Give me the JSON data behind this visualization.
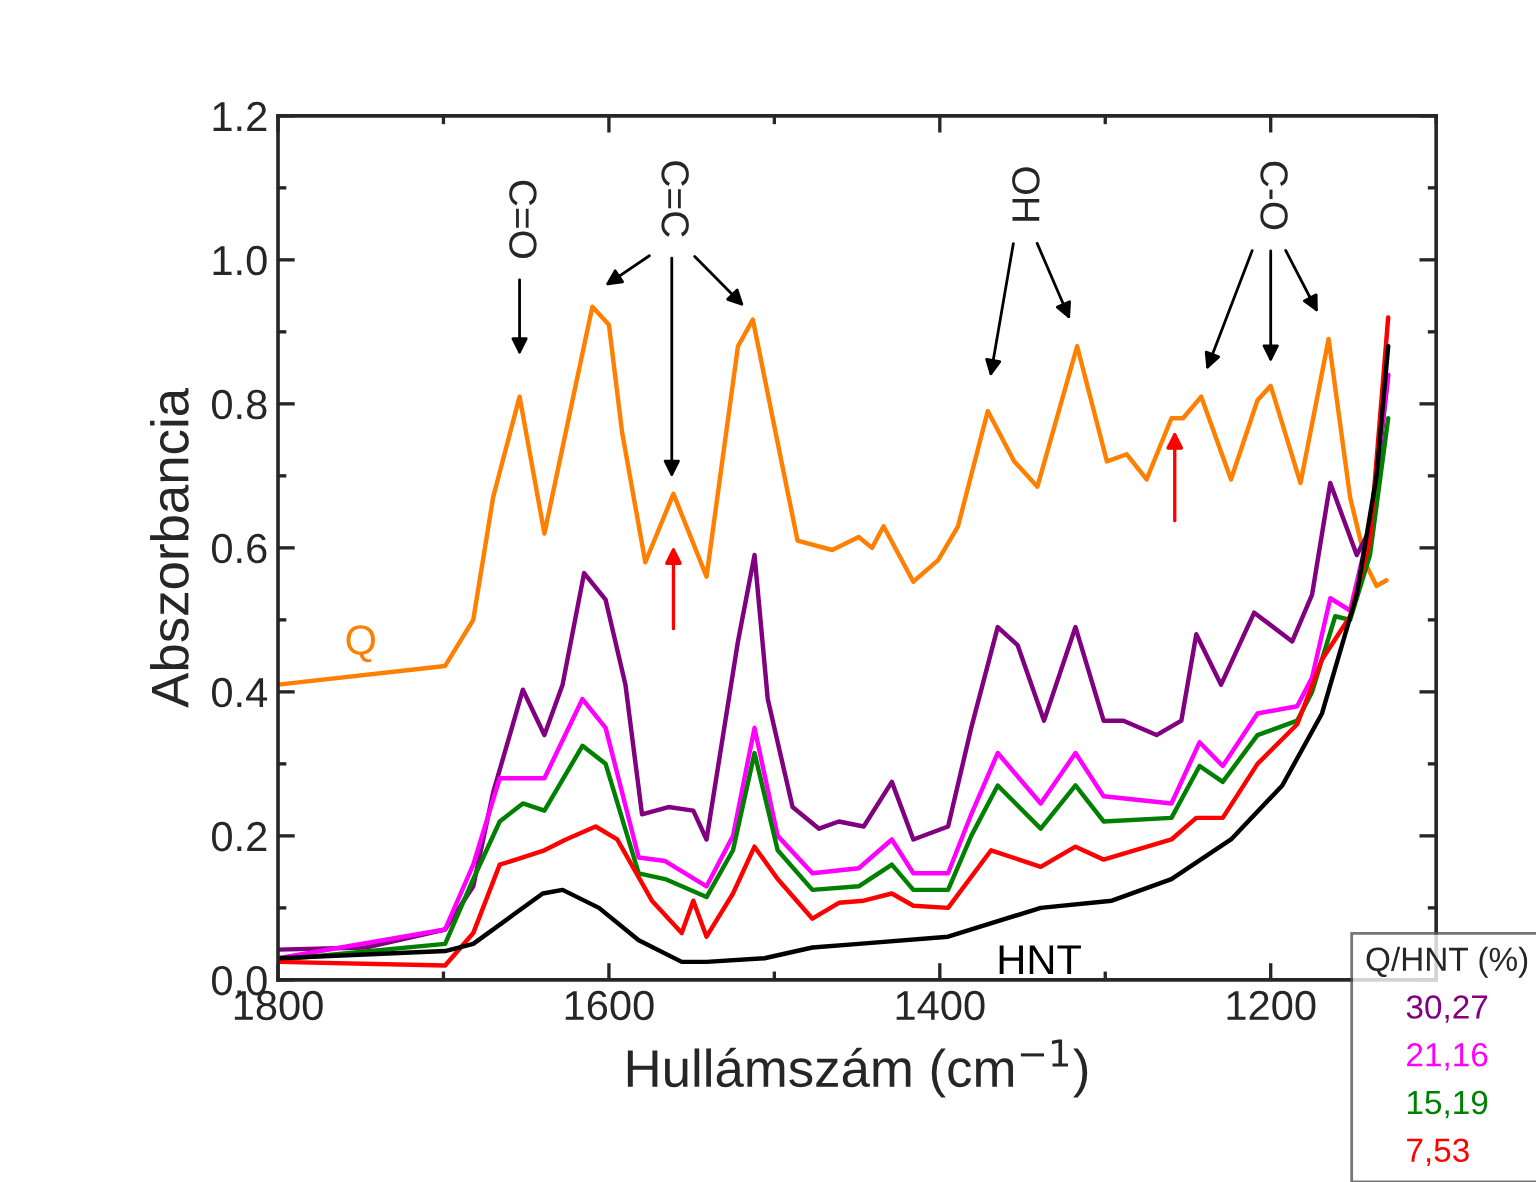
{
  "chart_data": {
    "type": "line",
    "xlabel": "Hullámszám (cm$^{−1}$)",
    "ylabel": "Abszorbancia",
    "legend_title": "Q/HNT (%)",
    "legend": "bottom right",
    "xlim": [
      1800,
      1100
    ],
    "xticks": [
      1800,
      1600,
      1400,
      1200
    ],
    "ylim": [
      0,
      1.2
    ],
    "yticks": [
      {
        "value": 0,
        "label": "0.0"
      },
      0.2,
      0.4,
      0.6,
      0.8,
      {
        "value": 1,
        "label": "1.0"
      },
      1.2
    ],
    "annotations": [
      "C=O",
      "C=C",
      "OH",
      "C-O"
    ],
    "series": [
      {
        "name": "Q",
        "color": "#ff8000",
        "x": [
          1800,
          1699,
          1682,
          1670,
          1654,
          1639,
          1622,
          1610,
          1600,
          1592,
          1578,
          1561,
          1541,
          1522,
          1513,
          1501,
          1486,
          1465,
          1449,
          1441,
          1434,
          1416,
          1401,
          1389,
          1371,
          1355,
          1341,
          1317,
          1299,
          1287,
          1275,
          1260,
          1253,
          1242,
          1224,
          1208,
          1200,
          1182,
          1165,
          1152,
          1142,
          1136,
          1130
        ],
        "values": [
          0.41,
          0.436,
          0.5,
          0.67,
          0.81,
          0.62,
          0.805,
          0.935,
          0.91,
          0.76,
          0.58,
          0.675,
          0.56,
          0.88,
          0.917,
          0.78,
          0.61,
          0.597,
          0.615,
          0.6,
          0.63,
          0.553,
          0.583,
          0.63,
          0.79,
          0.72,
          0.685,
          0.88,
          0.72,
          0.73,
          0.695,
          0.78,
          0.78,
          0.81,
          0.695,
          0.805,
          0.825,
          0.69,
          0.89,
          0.67,
          0.575,
          0.547,
          0.555
        ]
      },
      {
        "name": "30,27",
        "color": "#800080",
        "x": [
          1800,
          1747,
          1699,
          1682,
          1670,
          1652,
          1639,
          1628,
          1615,
          1602,
          1590,
          1580,
          1564,
          1549,
          1541,
          1522,
          1512,
          1504,
          1489,
          1473,
          1461,
          1446,
          1429,
          1416,
          1395,
          1381,
          1365,
          1353,
          1337,
          1318,
          1301,
          1289,
          1269,
          1254,
          1245,
          1230,
          1210,
          1187,
          1175,
          1164,
          1148,
          1139,
          1129
        ],
        "values": [
          0.042,
          0.045,
          0.07,
          0.13,
          0.26,
          0.403,
          0.34,
          0.41,
          0.565,
          0.528,
          0.41,
          0.23,
          0.24,
          0.235,
          0.195,
          0.47,
          0.59,
          0.39,
          0.24,
          0.21,
          0.22,
          0.213,
          0.275,
          0.195,
          0.213,
          0.35,
          0.49,
          0.465,
          0.36,
          0.49,
          0.36,
          0.36,
          0.34,
          0.36,
          0.48,
          0.41,
          0.51,
          0.47,
          0.535,
          0.69,
          0.59,
          0.63,
          0.84
        ]
      },
      {
        "name": "21,16",
        "color": "#ff00ff",
        "x": [
          1800,
          1699,
          1682,
          1666,
          1652,
          1639,
          1616,
          1602,
          1582,
          1566,
          1541,
          1525,
          1512,
          1498,
          1477,
          1449,
          1429,
          1416,
          1395,
          1381,
          1365,
          1339,
          1318,
          1301,
          1260,
          1243,
          1229,
          1208,
          1184,
          1175,
          1164,
          1152,
          1140,
          1129
        ],
        "values": [
          0.03,
          0.07,
          0.16,
          0.28,
          0.28,
          0.28,
          0.39,
          0.35,
          0.17,
          0.165,
          0.13,
          0.2,
          0.35,
          0.2,
          0.148,
          0.155,
          0.195,
          0.148,
          0.148,
          0.23,
          0.315,
          0.245,
          0.315,
          0.255,
          0.245,
          0.33,
          0.297,
          0.37,
          0.38,
          0.42,
          0.53,
          0.513,
          0.63,
          0.84
        ]
      },
      {
        "name": "15,19",
        "color": "#008000",
        "x": [
          1800,
          1699,
          1682,
          1666,
          1652,
          1639,
          1616,
          1602,
          1582,
          1566,
          1541,
          1525,
          1512,
          1498,
          1477,
          1449,
          1429,
          1416,
          1395,
          1381,
          1365,
          1339,
          1318,
          1301,
          1260,
          1243,
          1229,
          1208,
          1184,
          1175,
          1161,
          1152,
          1140,
          1129
        ],
        "values": [
          0.028,
          0.05,
          0.14,
          0.22,
          0.245,
          0.235,
          0.325,
          0.3,
          0.148,
          0.14,
          0.115,
          0.18,
          0.315,
          0.18,
          0.125,
          0.13,
          0.16,
          0.125,
          0.125,
          0.2,
          0.27,
          0.21,
          0.27,
          0.22,
          0.225,
          0.297,
          0.275,
          0.34,
          0.36,
          0.4,
          0.505,
          0.5,
          0.59,
          0.78
        ]
      },
      {
        "name": "7,53",
        "color": "#ff0000",
        "x": [
          1800,
          1699,
          1682,
          1666,
          1652,
          1639,
          1626,
          1608,
          1595,
          1574,
          1556,
          1549,
          1541,
          1525,
          1512,
          1498,
          1477,
          1461,
          1446,
          1429,
          1416,
          1395,
          1369,
          1339,
          1318,
          1301,
          1260,
          1245,
          1229,
          1208,
          1184,
          1169,
          1152,
          1140,
          1129
        ],
        "values": [
          0.025,
          0.02,
          0.065,
          0.16,
          0.17,
          0.18,
          0.195,
          0.213,
          0.195,
          0.11,
          0.065,
          0.11,
          0.06,
          0.12,
          0.185,
          0.14,
          0.085,
          0.107,
          0.11,
          0.12,
          0.103,
          0.1,
          0.18,
          0.157,
          0.185,
          0.167,
          0.195,
          0.225,
          0.225,
          0.3,
          0.355,
          0.445,
          0.505,
          0.61,
          0.92
        ]
      },
      {
        "name": "HNT",
        "color": "#000000",
        "x": [
          1800,
          1699,
          1682,
          1658,
          1640,
          1628,
          1606,
          1582,
          1556,
          1541,
          1506,
          1477,
          1449,
          1395,
          1339,
          1296,
          1260,
          1224,
          1193,
          1169,
          1148,
          1136,
          1129
        ],
        "values": [
          0.03,
          0.04,
          0.05,
          0.09,
          0.12,
          0.125,
          0.1,
          0.055,
          0.025,
          0.025,
          0.03,
          0.045,
          0.05,
          0.06,
          0.1,
          0.11,
          0.14,
          0.195,
          0.27,
          0.37,
          0.535,
          0.7,
          0.88
        ]
      }
    ]
  }
}
